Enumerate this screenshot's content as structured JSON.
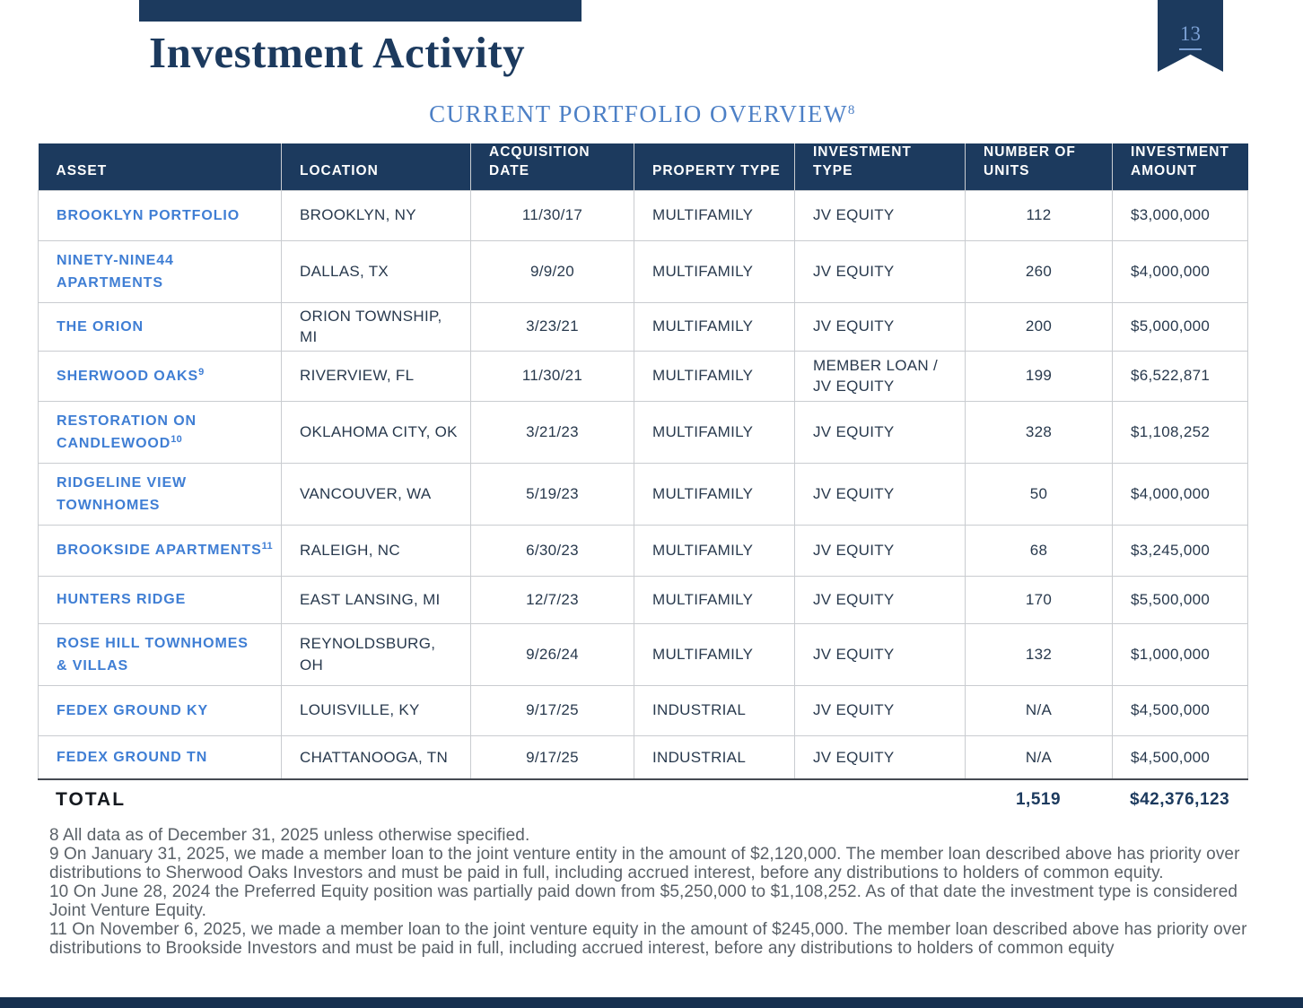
{
  "page": {
    "number": "13"
  },
  "header": {
    "title": "Investment Activity",
    "subtitle": "CURRENT PORTFOLIO OVERVIEW",
    "subtitle_sup": "8"
  },
  "table": {
    "columns": [
      "ASSET",
      "LOCATION",
      "ACQUISITION\nDATE",
      "PROPERTY TYPE",
      "INVESTMENT\nTYPE",
      "NUMBER OF\nUNITS",
      "INVESTMENT\nAMOUNT"
    ],
    "rows": [
      {
        "asset": "BROOKLYN PORTFOLIO",
        "sup": "",
        "location": "BROOKLYN, NY",
        "date": "11/30/17",
        "property_type": "MULTIFAMILY",
        "investment_type": "JV EQUITY",
        "units": "112",
        "amount": "$3,000,000"
      },
      {
        "asset": "NINETY-NINE44\nAPARTMENTS",
        "sup": "",
        "location": "DALLAS, TX",
        "date": "9/9/20",
        "property_type": "MULTIFAMILY",
        "investment_type": "JV EQUITY",
        "units": "260",
        "amount": "$4,000,000"
      },
      {
        "asset": "THE ORION",
        "sup": "",
        "location": "ORION TOWNSHIP, MI",
        "date": "3/23/21",
        "property_type": "MULTIFAMILY",
        "investment_type": "JV EQUITY",
        "units": "200",
        "amount": "$5,000,000"
      },
      {
        "asset": "SHERWOOD OAKS",
        "sup": "9",
        "location": "RIVERVIEW, FL",
        "date": "11/30/21",
        "property_type": "MULTIFAMILY",
        "investment_type": "MEMBER LOAN /\nJV EQUITY",
        "units": "199",
        "amount": "$6,522,871"
      },
      {
        "asset": "RESTORATION ON\nCANDLEWOOD",
        "sup": "10",
        "location": "OKLAHOMA CITY, OK",
        "date": "3/21/23",
        "property_type": "MULTIFAMILY",
        "investment_type": "JV EQUITY",
        "units": "328",
        "amount": "$1,108,252"
      },
      {
        "asset": "RIDGELINE VIEW\nTOWNHOMES",
        "sup": "",
        "location": "VANCOUVER, WA",
        "date": "5/19/23",
        "property_type": "MULTIFAMILY",
        "investment_type": "JV EQUITY",
        "units": "50",
        "amount": "$4,000,000"
      },
      {
        "asset": "BROOKSIDE APARTMENTS",
        "sup": "11",
        "location": "RALEIGH, NC",
        "date": "6/30/23",
        "property_type": "MULTIFAMILY",
        "investment_type": "JV EQUITY",
        "units": "68",
        "amount": "$3,245,000"
      },
      {
        "asset": "HUNTERS RIDGE",
        "sup": "",
        "location": "EAST LANSING, MI",
        "date": "12/7/23",
        "property_type": "MULTIFAMILY",
        "investment_type": "JV EQUITY",
        "units": "170",
        "amount": "$5,500,000"
      },
      {
        "asset": "ROSE HILL TOWNHOMES\n& VILLAS",
        "sup": "",
        "location": "REYNOLDSBURG, OH",
        "date": "9/26/24",
        "property_type": "MULTIFAMILY",
        "investment_type": "JV EQUITY",
        "units": "132",
        "amount": "$1,000,000"
      },
      {
        "asset": "FEDEX GROUND KY",
        "sup": "",
        "location": "LOUISVILLE, KY",
        "date": "9/17/25",
        "property_type": "INDUSTRIAL",
        "investment_type": "JV EQUITY",
        "units": "N/A",
        "amount": "$4,500,000"
      },
      {
        "asset": "FEDEX GROUND TN",
        "sup": "",
        "location": "CHATTANOOGA, TN",
        "date": "9/17/25",
        "property_type": "INDUSTRIAL",
        "investment_type": "JV EQUITY",
        "units": "N/A",
        "amount": "$4,500,000"
      }
    ],
    "total": {
      "label": "TOTAL",
      "units": "1,519",
      "amount": "$42,376,123"
    }
  },
  "footnotes": [
    "8 All data as of December 31, 2025 unless otherwise specified.",
    "9 On January 31, 2025, we made a member loan to the joint venture entity in the amount of $2,120,000. The member loan described above has priority over distributions to Sherwood Oaks Investors and must be paid in full, including accrued interest, before any distributions to holders of common equity.",
    "10 On June 28, 2024 the Preferred Equity position was partially paid down from $5,250,000 to $1,108,252. As of that date the investment type is considered Joint Venture Equity.",
    "11 On November 6, 2025, we made a member loan to the joint venture equity in  the amount of $245,000. The member loan described above has priority over distributions to Brookside Investors and must be paid in full, including accrued interest, before any distributions to holders of common equity"
  ],
  "colors": {
    "navy": "#1c3a5e",
    "asset_blue": "#3f7ed4",
    "subtitle_blue": "#4d80c6",
    "ribbon_number_blue": "#7ba0d4",
    "cell_text": "#28394d",
    "footnote_gray": "#5a6168",
    "grid_line": "#c9ccd0"
  }
}
